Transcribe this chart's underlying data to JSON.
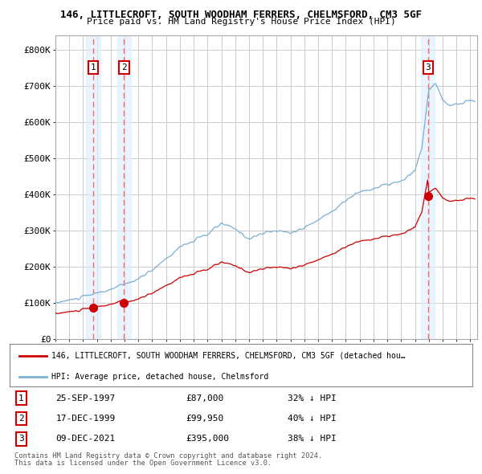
{
  "title1": "146, LITTLECROFT, SOUTH WOODHAM FERRERS, CHELMSFORD, CM3 5GF",
  "title2": "Price paid vs. HM Land Registry's House Price Index (HPI)",
  "ylabel_ticks": [
    "£0",
    "£100K",
    "£200K",
    "£300K",
    "£400K",
    "£500K",
    "£600K",
    "£700K",
    "£800K"
  ],
  "ytick_values": [
    0,
    100000,
    200000,
    300000,
    400000,
    500000,
    600000,
    700000,
    800000
  ],
  "ylim": [
    0,
    840000
  ],
  "xlim": [
    1995.0,
    2025.5
  ],
  "purchases": [
    {
      "label": "1",
      "date": "25-SEP-1997",
      "price": 87000,
      "year": 1997.73,
      "hpi_pct": "32% ↓ HPI"
    },
    {
      "label": "2",
      "date": "17-DEC-1999",
      "price": 99950,
      "year": 1999.96,
      "hpi_pct": "40% ↓ HPI"
    },
    {
      "label": "3",
      "date": "09-DEC-2021",
      "price": 395000,
      "year": 2021.94,
      "hpi_pct": "38% ↓ HPI"
    }
  ],
  "legend_line1": "146, LITTLECROFT, SOUTH WOODHAM FERRERS, CHELMSFORD, CM3 5GF (detached hou…",
  "legend_line2": "HPI: Average price, detached house, Chelmsford",
  "footer1": "Contains HM Land Registry data © Crown copyright and database right 2024.",
  "footer2": "This data is licensed under the Open Government Licence v3.0.",
  "hpi_color": "#7aafd4",
  "price_color": "#cc0000",
  "purchase_marker_color": "#cc0000",
  "dashed_line_color": "#ff6666",
  "background_color": "#ffffff",
  "grid_color": "#cccccc",
  "shade_color": "#ddeeff",
  "label_box_color": "#cc0000"
}
